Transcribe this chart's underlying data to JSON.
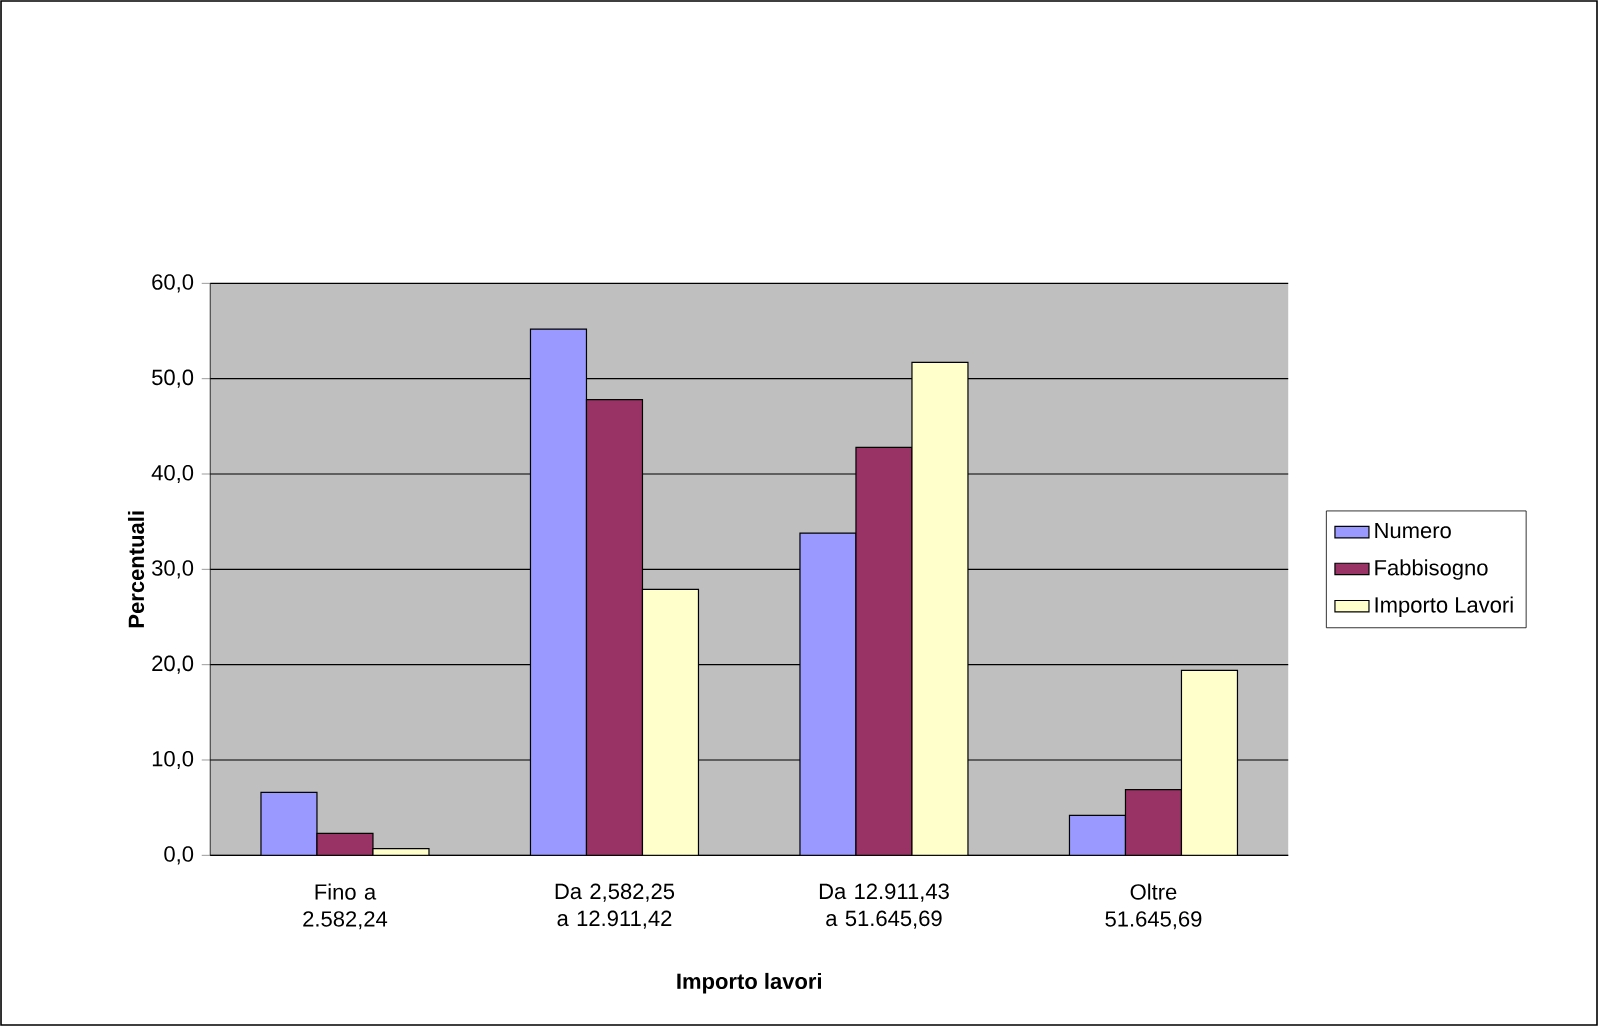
{
  "chart_data": {
    "type": "bar",
    "xlabel": "Importo lavori",
    "ylabel": "Percentuali",
    "categories": [
      "Fino a 2.582,24",
      "Da 2,582,25 a 12.911,42",
      "Da 12.911,43 a 51.645,69",
      "Oltre 51.645,69"
    ],
    "series": [
      {
        "name": "Numero",
        "color": "#9999ff",
        "values": [
          6.6,
          55.2,
          33.8,
          4.2
        ]
      },
      {
        "name": "Fabbisogno",
        "color": "#993366",
        "values": [
          2.3,
          47.8,
          42.8,
          6.9
        ]
      },
      {
        "name": "Importo Lavori",
        "color": "#ffffcc",
        "values": [
          0.7,
          27.9,
          51.7,
          19.4
        ]
      }
    ],
    "ylim": [
      0,
      60
    ],
    "yticks": [
      {
        "value": 0,
        "label": "0,0"
      },
      {
        "value": 10,
        "label": "10,0"
      },
      {
        "value": 20,
        "label": "20,0"
      },
      {
        "value": 30,
        "label": "30,0"
      },
      {
        "value": 40,
        "label": "40,0"
      },
      {
        "value": 50,
        "label": "50,0"
      },
      {
        "value": 60,
        "label": "60,0"
      }
    ],
    "grid": "y",
    "legend": "right"
  }
}
